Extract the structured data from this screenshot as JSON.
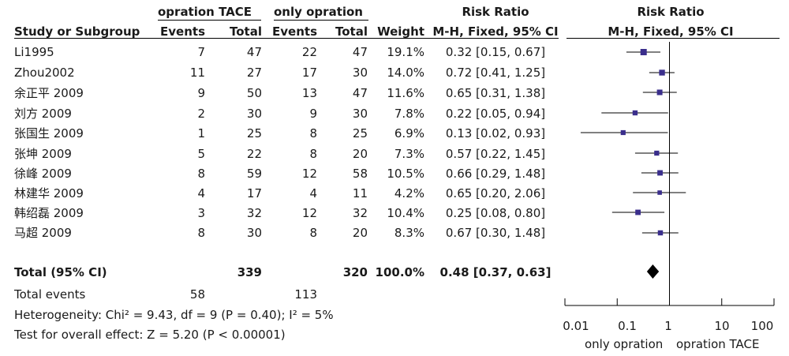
{
  "header": {
    "group1": "opration TACE",
    "group2": "only opration",
    "rr_text": "Risk Ratio",
    "rr_plot": "Risk Ratio",
    "study": "Study or Subgroup",
    "events1": "Events",
    "total1": "Total",
    "events2": "Events",
    "total2": "Total",
    "weight": "Weight",
    "method_text": "M-H, Fixed, 95% CI",
    "method_plot": "M-H, Fixed, 95% CI"
  },
  "studies": [
    {
      "name": "Li1995",
      "e1": "7",
      "n1": "47",
      "e2": "22",
      "n2": "47",
      "weight": "19.1%",
      "ci_text": "0.32 [0.15, 0.67]"
    },
    {
      "name": "Zhou2002",
      "e1": "11",
      "n1": "27",
      "e2": "17",
      "n2": "30",
      "weight": "14.0%",
      "ci_text": "0.72 [0.41, 1.25]"
    },
    {
      "name": "余正平 2009",
      "e1": "9",
      "n1": "50",
      "e2": "13",
      "n2": "47",
      "weight": "11.6%",
      "ci_text": "0.65 [0.31, 1.38]"
    },
    {
      "name": "刘方 2009",
      "e1": "2",
      "n1": "30",
      "e2": "9",
      "n2": "30",
      "weight": "7.8%",
      "ci_text": "0.22 [0.05, 0.94]"
    },
    {
      "name": "张国生 2009",
      "e1": "1",
      "n1": "25",
      "e2": "8",
      "n2": "25",
      "weight": "6.9%",
      "ci_text": "0.13 [0.02, 0.93]"
    },
    {
      "name": "张坤 2009",
      "e1": "5",
      "n1": "22",
      "e2": "8",
      "n2": "20",
      "weight": "7.3%",
      "ci_text": "0.57 [0.22, 1.45]"
    },
    {
      "name": "徐峰 2009",
      "e1": "8",
      "n1": "59",
      "e2": "12",
      "n2": "58",
      "weight": "10.5%",
      "ci_text": "0.66 [0.29, 1.48]"
    },
    {
      "name": "林建华 2009",
      "e1": "4",
      "n1": "17",
      "e2": "4",
      "n2": "11",
      "weight": "4.2%",
      "ci_text": "0.65 [0.20, 2.06]"
    },
    {
      "name": "韩绍磊 2009",
      "e1": "3",
      "n1": "32",
      "e2": "12",
      "n2": "32",
      "weight": "10.4%",
      "ci_text": "0.25 [0.08, 0.80]"
    },
    {
      "name": "马超 2009",
      "e1": "8",
      "n1": "30",
      "e2": "8",
      "n2": "20",
      "weight": "8.3%",
      "ci_text": "0.67 [0.30, 1.48]"
    }
  ],
  "total": {
    "label": "Total (95% CI)",
    "n1": "339",
    "n2": "320",
    "weight": "100.0%",
    "ci_text": "0.48 [0.37, 0.63]"
  },
  "total_events": {
    "label": "Total events",
    "e1": "58",
    "e2": "113"
  },
  "heterogeneity": "Heterogeneity: Chi² = 9.43, df = 9 (P = 0.40); I² = 5%",
  "overall_effect": "Test for overall effect: Z = 5.20 (P < 0.00001)",
  "axis": {
    "ticks": [
      "0.01",
      "0.1",
      "1",
      "10",
      "100"
    ],
    "favours_left": "only opration",
    "favours_right": "opration TACE"
  },
  "colors": {
    "marker": "#3a2e8c",
    "line": "#000000",
    "diamond": "#000000"
  },
  "chart_data": {
    "type": "forest",
    "scale": "log",
    "xlim": [
      0.01,
      100
    ],
    "ticks": [
      0.01,
      0.1,
      1,
      10,
      100
    ],
    "reference_line": 1,
    "points": [
      {
        "study": "Li1995",
        "rr": 0.32,
        "lo": 0.15,
        "hi": 0.67,
        "weight": 19.1
      },
      {
        "study": "Zhou2002",
        "rr": 0.72,
        "lo": 0.41,
        "hi": 1.25,
        "weight": 14.0
      },
      {
        "study": "余正平 2009",
        "rr": 0.65,
        "lo": 0.31,
        "hi": 1.38,
        "weight": 11.6
      },
      {
        "study": "刘方 2009",
        "rr": 0.22,
        "lo": 0.05,
        "hi": 0.94,
        "weight": 7.8
      },
      {
        "study": "张国生 2009",
        "rr": 0.13,
        "lo": 0.02,
        "hi": 0.93,
        "weight": 6.9
      },
      {
        "study": "张坤 2009",
        "rr": 0.57,
        "lo": 0.22,
        "hi": 1.45,
        "weight": 7.3
      },
      {
        "study": "徐峰 2009",
        "rr": 0.66,
        "lo": 0.29,
        "hi": 1.48,
        "weight": 10.5
      },
      {
        "study": "林建华 2009",
        "rr": 0.65,
        "lo": 0.2,
        "hi": 2.06,
        "weight": 4.2
      },
      {
        "study": "韩绍磊 2009",
        "rr": 0.25,
        "lo": 0.08,
        "hi": 0.8,
        "weight": 10.4
      },
      {
        "study": "马超 2009",
        "rr": 0.67,
        "lo": 0.3,
        "hi": 1.48,
        "weight": 8.3
      }
    ],
    "total": {
      "rr": 0.48,
      "lo": 0.37,
      "hi": 0.63
    }
  }
}
